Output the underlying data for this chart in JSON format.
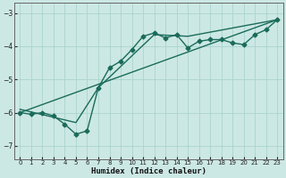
{
  "xlabel": "Humidex (Indice chaleur)",
  "bg_color": "#cce8e4",
  "line_color": "#1a6b5a",
  "grid_color": "#aad4ce",
  "xlim": [
    -0.5,
    23.5
  ],
  "ylim": [
    -7.4,
    -2.7
  ],
  "yticks": [
    -7,
    -6,
    -5,
    -4,
    -3
  ],
  "xticks": [
    0,
    1,
    2,
    3,
    4,
    5,
    6,
    7,
    8,
    9,
    10,
    11,
    12,
    13,
    14,
    15,
    16,
    17,
    18,
    19,
    20,
    21,
    22,
    23
  ],
  "line1_x": [
    0,
    1,
    2,
    3,
    4,
    5,
    6,
    7,
    8,
    9,
    10,
    11,
    12,
    13,
    14,
    15,
    16,
    17,
    18,
    19,
    20,
    21,
    22,
    23
  ],
  "line1_y": [
    -6.0,
    -6.05,
    -6.0,
    -6.1,
    -6.35,
    -6.65,
    -6.55,
    -5.25,
    -4.65,
    -4.45,
    -4.1,
    -3.7,
    -3.6,
    -3.75,
    -3.65,
    -4.05,
    -3.85,
    -3.8,
    -3.8,
    -3.9,
    -3.95,
    -3.65,
    -3.5,
    -3.2
  ],
  "line2_x": [
    0,
    23
  ],
  "line2_y": [
    -6.0,
    -3.2
  ],
  "line3_x": [
    0,
    5,
    7,
    12,
    15,
    23
  ],
  "line3_y": [
    -5.9,
    -6.3,
    -5.25,
    -3.65,
    -3.7,
    -3.2
  ],
  "marker": "D",
  "marker_size": 2.5,
  "line_width": 1.0
}
